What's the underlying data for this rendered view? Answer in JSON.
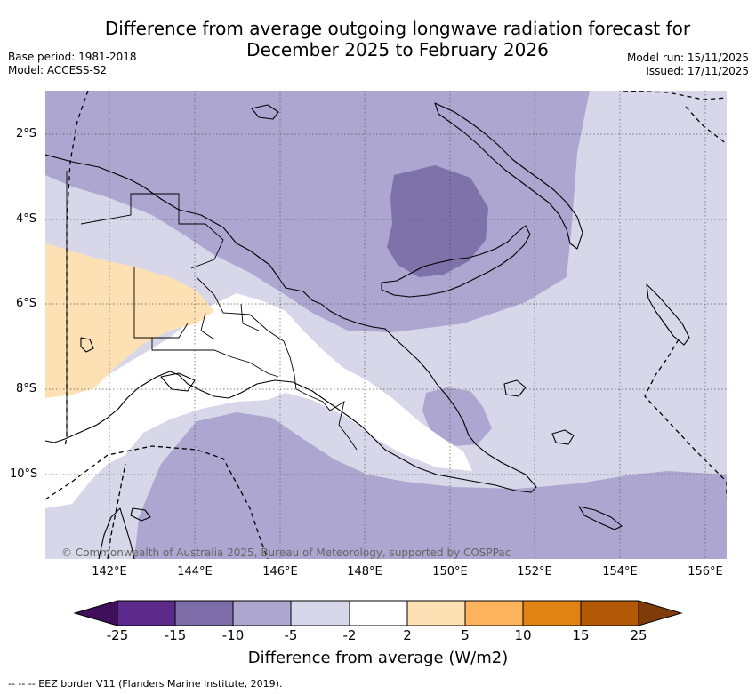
{
  "title": {
    "line1": "Difference from average outgoing longwave radiation forecast for",
    "line2": "December 2025 to February 2026"
  },
  "meta": {
    "base_period": "Base period: 1981-2018",
    "model": "Model: ACCESS-S2",
    "model_run": "Model run: 15/11/2025",
    "issued": "Issued: 17/11/2025"
  },
  "map": {
    "copyright": "© Commonwealth of Australia 2025, Bureau of Meteorology, supported by COSPPac",
    "lat_labels": [
      "2°S",
      "4°S",
      "6°S",
      "8°S",
      "10°S"
    ],
    "lon_labels": [
      "142°E",
      "144°E",
      "146°E",
      "148°E",
      "150°E",
      "152°E",
      "154°E",
      "156°E"
    ]
  },
  "colorbar": {
    "label": "Difference from average (W/m2)",
    "ticks": [
      "-25",
      "-15",
      "-10",
      "-5",
      "-2",
      "2",
      "5",
      "10",
      "15",
      "25"
    ],
    "colors": [
      "#3f0f5a",
      "#5b2a8b",
      "#7c6ca7",
      "#ada6d0",
      "#d8d7ea",
      "#ffffff",
      "#fde0b4",
      "#fbb45c",
      "#e08214",
      "#b35806",
      "#7f3b08"
    ]
  },
  "footnote": "--  --  -- EEZ border V11 (Flanders Marine Institute, 2019)."
}
